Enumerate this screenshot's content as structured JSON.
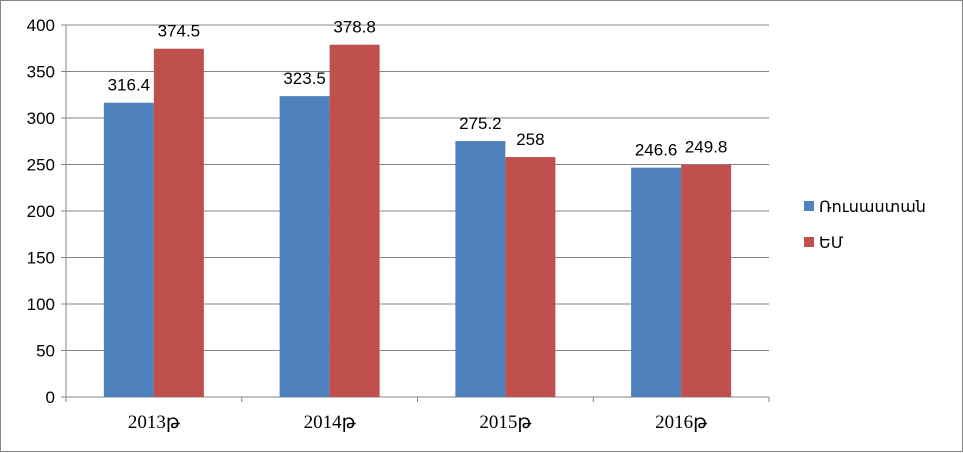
{
  "chart_data": {
    "type": "bar",
    "categories": [
      "2013թ",
      "2014թ",
      "2015թ",
      "2016թ"
    ],
    "series": [
      {
        "name": "Ռուսաստան",
        "color": "#4F81BD",
        "values": [
          316.4,
          323.5,
          275.2,
          246.6
        ]
      },
      {
        "name": "ԵՄ",
        "color": "#C0504D",
        "values": [
          374.5,
          378.8,
          258,
          249.8
        ]
      }
    ],
    "ylim": [
      0,
      400
    ],
    "yticks": [
      0,
      50,
      100,
      150,
      200,
      250,
      300,
      350,
      400
    ],
    "grid": true,
    "legend_position": "right"
  }
}
